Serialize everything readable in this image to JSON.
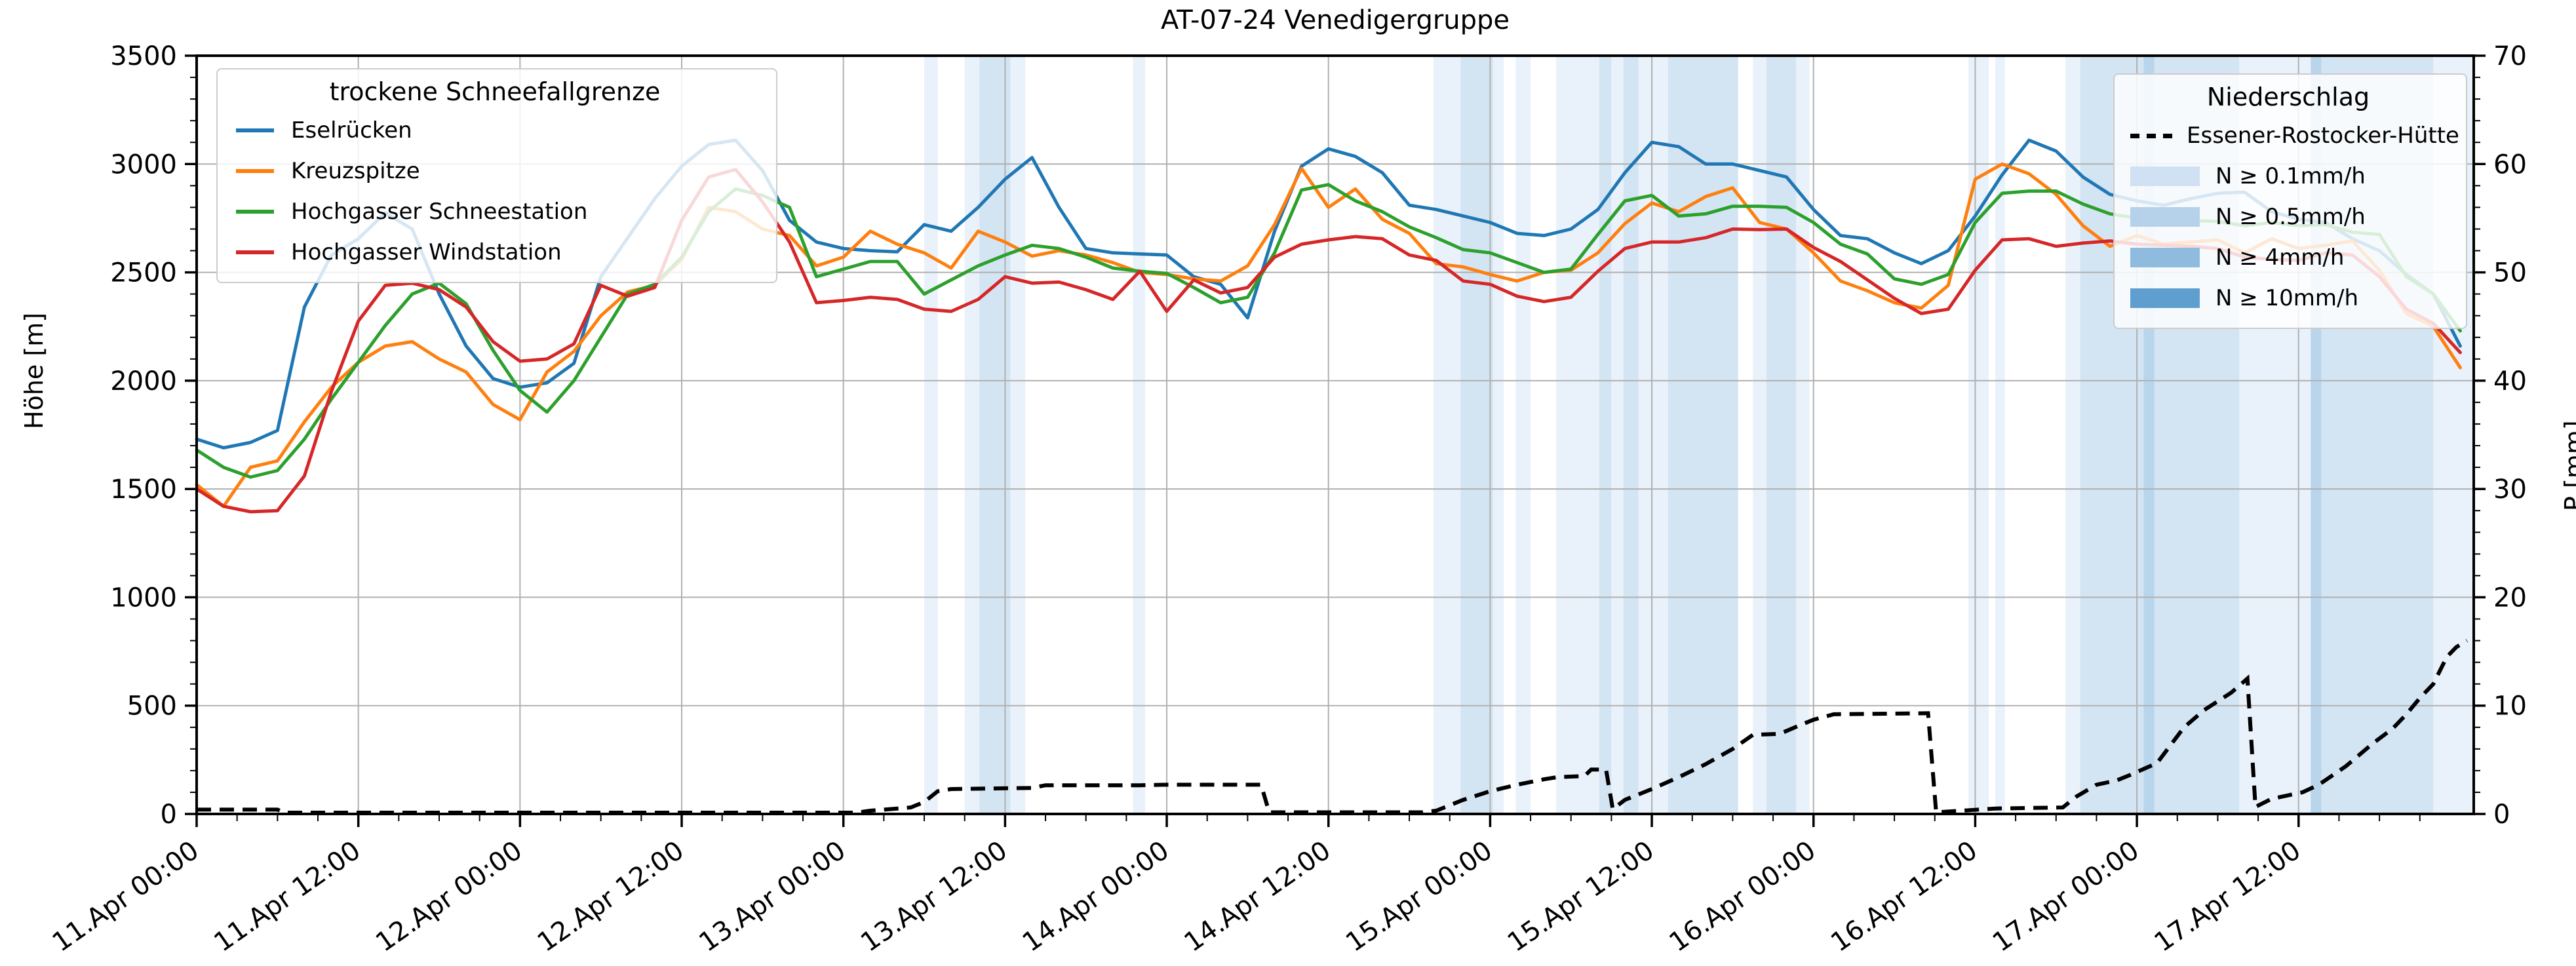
{
  "title": "AT-07-24 Venedigergruppe",
  "axes": {
    "y_left_label": "Höhe [m]",
    "y_right_label": "P [mm]",
    "y_left_ticks": [
      0,
      500,
      1000,
      1500,
      2000,
      2500,
      3000,
      3500
    ],
    "y_right_ticks": [
      0,
      10,
      20,
      30,
      40,
      50,
      60,
      70
    ],
    "x_tick_labels": [
      "11.Apr 00:00",
      "11.Apr 12:00",
      "12.Apr 00:00",
      "12.Apr 12:00",
      "13.Apr 00:00",
      "13.Apr 12:00",
      "14.Apr 00:00",
      "14.Apr 12:00",
      "15.Apr 00:00",
      "15.Apr 12:00",
      "16.Apr 00:00",
      "16.Apr 12:00",
      "17.Apr 00:00",
      "17.Apr 12:00"
    ]
  },
  "legend_lines": {
    "title": "trockene Schneefallgrenze",
    "items": [
      {
        "label": "Eselrücken",
        "color": "#1f77b4"
      },
      {
        "label": "Kreuzspitze",
        "color": "#ff7f0e"
      },
      {
        "label": "Hochgasser Schneestation",
        "color": "#2ca02c"
      },
      {
        "label": "Hochgasser Windstation",
        "color": "#d62728"
      }
    ]
  },
  "legend_precip": {
    "title": "Niederschlag",
    "line_item": {
      "label": "Essener-Rostocker-Hütte",
      "color": "#000000"
    },
    "items": [
      {
        "label": "N ≥ 0.1mm/h",
        "color": "#cfe1f3"
      },
      {
        "label": "N ≥ 0.5mm/h",
        "color": "#b5d2ea"
      },
      {
        "label": "N ≥ 4mm/h",
        "color": "#8fbcde"
      },
      {
        "label": "N ≥ 10mm/h",
        "color": "#5f9fcf"
      }
    ]
  },
  "chart_data": {
    "type": "line",
    "title": "AT-07-24 Venedigergruppe",
    "x_domain_hours": [
      0,
      169
    ],
    "x_major_tick_hours": [
      0,
      12,
      24,
      36,
      48,
      60,
      72,
      84,
      96,
      108,
      120,
      132,
      144,
      156
    ],
    "x_minor_step_hours": 3,
    "ylim_left": [
      0,
      3500
    ],
    "ylim_right": [
      0,
      70
    ],
    "y_left_minor_step": 100,
    "y_right_minor_step": 2,
    "grid_color": "#b0b0b0",
    "sample_step_hours": 2,
    "series": [
      {
        "name": "Eselrücken",
        "color": "#1f77b4",
        "values": [
          1730,
          1690,
          1715,
          1770,
          2340,
          2580,
          2655,
          2775,
          2700,
          2400,
          2160,
          2010,
          1970,
          1990,
          2080,
          2480,
          2660,
          2840,
          2990,
          3090,
          3110,
          2970,
          2740,
          2640,
          2610,
          2600,
          2595,
          2720,
          2690,
          2800,
          2930,
          3030,
          2800,
          2610,
          2590,
          2585,
          2580,
          2480,
          2445,
          2290,
          2690,
          2990,
          3070,
          3035,
          2960,
          2810,
          2790,
          2760,
          2730,
          2680,
          2670,
          2700,
          2790,
          2960,
          3100,
          3080,
          3000,
          3000,
          2970,
          2940,
          2790,
          2670,
          2655,
          2590,
          2540,
          2600,
          2760,
          2950,
          3110,
          3060,
          2940,
          2860,
          2830,
          2810,
          2840,
          2865,
          2870,
          2780,
          2745,
          2730,
          2655,
          2600,
          2490,
          2400,
          2160
        ]
      },
      {
        "name": "Kreuzspitze",
        "color": "#ff7f0e",
        "values": [
          1520,
          1420,
          1600,
          1630,
          1810,
          1970,
          2085,
          2160,
          2180,
          2100,
          2040,
          1890,
          1820,
          2040,
          2135,
          2300,
          2410,
          2440,
          2560,
          2800,
          2780,
          2700,
          2670,
          2530,
          2570,
          2690,
          2630,
          2590,
          2520,
          2690,
          2640,
          2575,
          2600,
          2580,
          2545,
          2500,
          2490,
          2470,
          2460,
          2530,
          2720,
          2980,
          2800,
          2885,
          2745,
          2680,
          2540,
          2525,
          2490,
          2460,
          2500,
          2510,
          2590,
          2725,
          2820,
          2780,
          2850,
          2890,
          2730,
          2700,
          2590,
          2460,
          2415,
          2360,
          2335,
          2440,
          2930,
          3000,
          2955,
          2860,
          2715,
          2620,
          2670,
          2630,
          2640,
          2650,
          2590,
          2655,
          2610,
          2625,
          2645,
          2510,
          2310,
          2250,
          2060
        ]
      },
      {
        "name": "Hochgasser Schneestation",
        "color": "#2ca02c",
        "values": [
          1680,
          1600,
          1555,
          1585,
          1730,
          1915,
          2085,
          2255,
          2400,
          2450,
          2355,
          2140,
          1955,
          1855,
          2000,
          2200,
          2400,
          2445,
          2570,
          2780,
          2885,
          2855,
          2800,
          2480,
          2515,
          2550,
          2550,
          2400,
          2465,
          2530,
          2580,
          2625,
          2610,
          2570,
          2520,
          2505,
          2495,
          2430,
          2360,
          2385,
          2590,
          2880,
          2905,
          2830,
          2780,
          2710,
          2660,
          2605,
          2590,
          2545,
          2500,
          2515,
          2675,
          2830,
          2855,
          2760,
          2770,
          2805,
          2805,
          2800,
          2730,
          2630,
          2585,
          2470,
          2445,
          2490,
          2730,
          2865,
          2875,
          2875,
          2815,
          2770,
          2750,
          2740,
          2740,
          2735,
          2715,
          2730,
          2715,
          2720,
          2685,
          2675,
          2480,
          2400,
          2230
        ]
      },
      {
        "name": "Hochgasser Windstation",
        "color": "#d62728",
        "values": [
          1500,
          1420,
          1395,
          1400,
          1560,
          1950,
          2275,
          2440,
          2450,
          2420,
          2340,
          2180,
          2090,
          2100,
          2170,
          2440,
          2390,
          2430,
          2740,
          2940,
          2975,
          2825,
          2640,
          2360,
          2370,
          2385,
          2375,
          2330,
          2320,
          2375,
          2480,
          2450,
          2455,
          2420,
          2375,
          2505,
          2320,
          2465,
          2405,
          2430,
          2570,
          2630,
          2650,
          2665,
          2655,
          2580,
          2555,
          2460,
          2445,
          2390,
          2365,
          2385,
          2505,
          2610,
          2640,
          2640,
          2660,
          2700,
          2697,
          2700,
          2615,
          2550,
          2465,
          2380,
          2310,
          2330,
          2510,
          2650,
          2655,
          2620,
          2635,
          2645,
          2630,
          2625,
          2620,
          2610,
          2570,
          2560,
          2555,
          2590,
          2580,
          2480,
          2330,
          2265,
          2130
        ]
      }
    ],
    "precip_line": {
      "name": "Essener-Rostocker-Hütte",
      "color": "#000000",
      "unit": "mm",
      "points": [
        [
          0,
          0.4
        ],
        [
          6,
          0.4
        ],
        [
          6.5,
          0.12
        ],
        [
          49,
          0.12
        ],
        [
          50,
          0.3
        ],
        [
          53,
          0.6
        ],
        [
          54,
          1.1
        ],
        [
          55,
          2.1
        ],
        [
          56,
          2.3
        ],
        [
          62,
          2.4
        ],
        [
          63,
          2.65
        ],
        [
          70,
          2.65
        ],
        [
          72,
          2.7
        ],
        [
          79,
          2.7
        ],
        [
          79.6,
          0.15
        ],
        [
          91,
          0.15
        ],
        [
          92,
          0.3
        ],
        [
          94,
          1.3
        ],
        [
          96,
          2.1
        ],
        [
          98,
          2.7
        ],
        [
          100,
          3.2
        ],
        [
          101,
          3.4
        ],
        [
          103,
          3.5
        ],
        [
          103.5,
          4.1
        ],
        [
          104.6,
          4.1
        ],
        [
          105.1,
          0.45
        ],
        [
          106,
          1.3
        ],
        [
          108,
          2.3
        ],
        [
          110,
          3.4
        ],
        [
          112,
          4.6
        ],
        [
          114,
          6.0
        ],
        [
          115.5,
          7.3
        ],
        [
          117.5,
          7.4
        ],
        [
          119,
          8.2
        ],
        [
          120,
          8.7
        ],
        [
          121.5,
          9.2
        ],
        [
          128.5,
          9.3
        ],
        [
          129.1,
          0.15
        ],
        [
          133.5,
          0.5
        ],
        [
          138.5,
          0.6
        ],
        [
          139.5,
          1.6
        ],
        [
          141,
          2.7
        ],
        [
          142.5,
          3.1
        ],
        [
          143.5,
          3.6
        ],
        [
          145.5,
          4.7
        ],
        [
          147.5,
          8.0
        ],
        [
          149,
          9.6
        ],
        [
          151,
          11.2
        ],
        [
          152.2,
          12.5
        ],
        [
          152.8,
          0.65
        ],
        [
          154,
          1.4
        ],
        [
          156.3,
          2.0
        ],
        [
          157.5,
          2.7
        ],
        [
          159.5,
          4.4
        ],
        [
          161.5,
          6.5
        ],
        [
          163,
          7.9
        ],
        [
          164,
          9.2
        ],
        [
          165,
          10.7
        ],
        [
          166,
          12.0
        ],
        [
          167,
          14.5
        ],
        [
          167.7,
          15.4
        ],
        [
          168.5,
          16.0
        ]
      ]
    },
    "precip_band_colors": {
      "1": "#e9f1fa",
      "2": "#d3e4f3",
      "3": "#b9d5ec",
      "4": "#8fc0e2"
    },
    "precip_bands": [
      [
        54,
        55,
        1
      ],
      [
        57,
        58.1,
        1
      ],
      [
        58.1,
        60.4,
        2
      ],
      [
        60.4,
        61.5,
        1
      ],
      [
        69.5,
        70.4,
        1
      ],
      [
        91.8,
        93.8,
        1
      ],
      [
        93.8,
        96.2,
        2
      ],
      [
        96.2,
        97,
        1
      ],
      [
        97.9,
        99,
        1
      ],
      [
        100.9,
        104.1,
        1
      ],
      [
        104.1,
        105,
        2
      ],
      [
        105,
        105.9,
        1
      ],
      [
        105.9,
        107,
        2
      ],
      [
        107,
        108,
        1
      ],
      [
        108,
        109.2,
        1
      ],
      [
        109.2,
        114.4,
        2
      ],
      [
        115.5,
        116.5,
        1
      ],
      [
        116.5,
        118.7,
        2
      ],
      [
        118.7,
        119.7,
        1
      ],
      [
        131.5,
        133,
        1
      ],
      [
        133.5,
        134.2,
        1
      ],
      [
        138.7,
        139.8,
        1
      ],
      [
        139.8,
        144.5,
        2
      ],
      [
        144.5,
        145.3,
        3
      ],
      [
        145.3,
        151.6,
        2
      ],
      [
        151.6,
        156.9,
        1
      ],
      [
        156.9,
        157.7,
        3
      ],
      [
        157.7,
        166,
        2
      ],
      [
        166,
        169,
        1
      ]
    ]
  }
}
